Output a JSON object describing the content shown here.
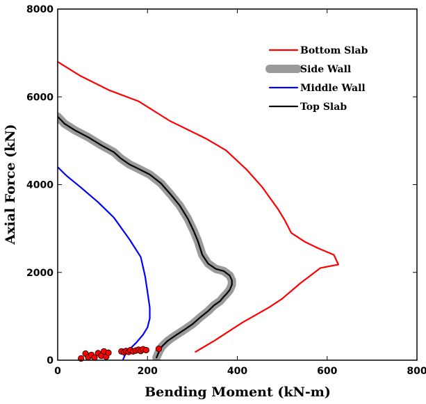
{
  "chart_data": {
    "type": "line",
    "title": "",
    "xlabel": "Bending Moment (kN-m)",
    "ylabel": "Axial Force (kN)",
    "xlim": [
      0,
      800
    ],
    "ylim": [
      0,
      8000
    ],
    "xticks": [
      0,
      200,
      400,
      600,
      800
    ],
    "yticks": [
      0,
      2000,
      4000,
      6000,
      8000
    ],
    "grid": false,
    "legend_position": "top-right",
    "series": [
      {
        "name": "Bottom Slab",
        "color": "#ff0000",
        "style": "line",
        "x": [
          307,
          350,
          410,
          470,
          500,
          540,
          585,
          625,
          615,
          580,
          550,
          520,
          505,
          490,
          455,
          420,
          375,
          330,
          250,
          180,
          115,
          50,
          0
        ],
        "y": [
          190,
          450,
          850,
          1200,
          1400,
          1750,
          2100,
          2180,
          2400,
          2550,
          2700,
          2900,
          3200,
          3450,
          3950,
          4350,
          4780,
          5050,
          5450,
          5900,
          6150,
          6480,
          6800
        ]
      },
      {
        "name": "Side Wall",
        "color": "#9a9a9a",
        "style": "thick-line",
        "x": [
          220,
          225,
          232,
          245,
          262,
          280,
          300,
          318,
          335,
          348,
          362,
          370,
          375,
          383,
          388,
          388,
          383,
          370,
          352,
          335,
          322,
          317,
          312,
          302,
          290,
          272,
          252,
          230,
          205,
          178,
          160,
          140,
          125,
          95,
          68,
          40,
          15,
          0
        ],
        "y": [
          60,
          180,
          310,
          440,
          560,
          680,
          820,
          980,
          1120,
          1250,
          1350,
          1450,
          1500,
          1600,
          1720,
          1820,
          1930,
          2030,
          2080,
          2200,
          2400,
          2560,
          2720,
          2960,
          3220,
          3520,
          3770,
          4030,
          4230,
          4370,
          4460,
          4600,
          4740,
          4910,
          5080,
          5230,
          5390,
          5550
        ]
      },
      {
        "name": "Middle Wall",
        "color": "#0000ff",
        "style": "line",
        "x": [
          145,
          150,
          160,
          175,
          190,
          200,
          205,
          205,
          200,
          195,
          185,
          160,
          125,
          90,
          50,
          20,
          0
        ],
        "y": [
          0,
          120,
          250,
          400,
          580,
          750,
          950,
          1200,
          1550,
          1900,
          2350,
          2750,
          3250,
          3600,
          3950,
          4200,
          4400
        ]
      },
      {
        "name": "Top Slab",
        "color": "#000000",
        "style": "line",
        "x": [
          220,
          225,
          232,
          245,
          262,
          280,
          300,
          318,
          335,
          348,
          362,
          370,
          375,
          383,
          388,
          388,
          383,
          370,
          352,
          335,
          322,
          317,
          312,
          302,
          290,
          272,
          252,
          230,
          205,
          178,
          160,
          140,
          125,
          95,
          68,
          40,
          15,
          0
        ],
        "y": [
          60,
          180,
          310,
          440,
          560,
          680,
          820,
          980,
          1120,
          1250,
          1350,
          1450,
          1500,
          1600,
          1720,
          1820,
          1930,
          2030,
          2080,
          2200,
          2400,
          2560,
          2720,
          2960,
          3220,
          3520,
          3770,
          4030,
          4230,
          4370,
          4460,
          4600,
          4740,
          4910,
          5080,
          5230,
          5390,
          5550
        ]
      }
    ],
    "markers": {
      "color": "#ff0000",
      "edge_color": "#000000",
      "x": [
        52,
        62,
        68,
        75,
        82,
        90,
        97,
        103,
        108,
        113,
        142,
        148,
        152,
        158,
        162,
        168,
        174,
        180,
        185,
        190,
        197,
        225
      ],
      "y": [
        40,
        150,
        70,
        120,
        60,
        160,
        100,
        200,
        80,
        170,
        200,
        180,
        210,
        190,
        230,
        200,
        220,
        240,
        210,
        250,
        230,
        260
      ]
    }
  }
}
